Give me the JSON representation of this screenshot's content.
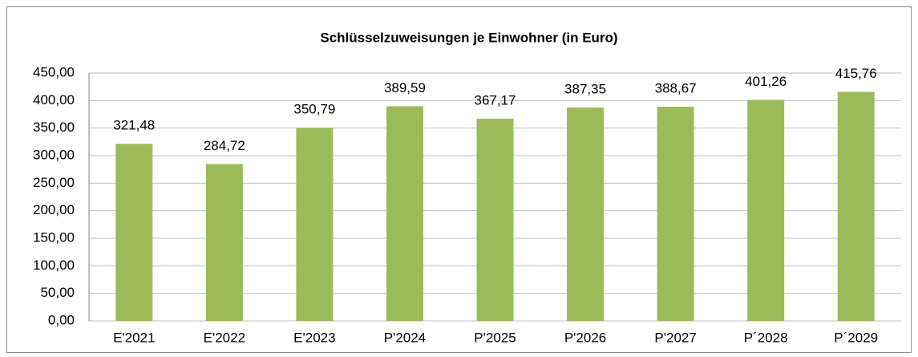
{
  "chart_data": {
    "type": "bar",
    "title": "Schlüsselzuweisungen je Einwohner (in Euro)",
    "categories": [
      "E'2021",
      "E'2022",
      "E'2023",
      "P'2024",
      "P'2025",
      "P'2026",
      "P'2027",
      "P´2028",
      "P´2029"
    ],
    "values": [
      321.48,
      284.72,
      350.79,
      389.59,
      367.17,
      387.35,
      388.67,
      401.26,
      415.76
    ],
    "value_labels": [
      "321,48",
      "284,72",
      "350,79",
      "389,59",
      "367,17",
      "387,35",
      "388,67",
      "401,26",
      "415,76"
    ],
    "color": "#9bbb59",
    "ylim": [
      0,
      450
    ],
    "yticks": [
      {
        "value": 0,
        "label": "0,00"
      },
      {
        "value": 50,
        "label": "50,00"
      },
      {
        "value": 100,
        "label": "100,00"
      },
      {
        "value": 150,
        "label": "150,00"
      },
      {
        "value": 200,
        "label": "200,00"
      },
      {
        "value": 250,
        "label": "250,00"
      },
      {
        "value": 300,
        "label": "300,00"
      },
      {
        "value": 350,
        "label": "350,00"
      },
      {
        "value": 400,
        "label": "400,00"
      },
      {
        "value": 450,
        "label": "450,00"
      }
    ],
    "grid": true
  }
}
